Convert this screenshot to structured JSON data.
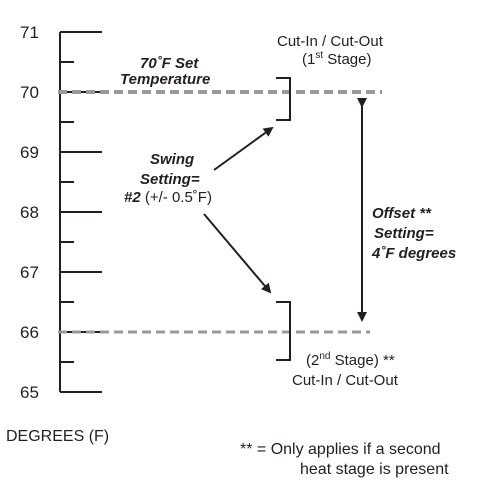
{
  "axis": {
    "ticks": [
      "71",
      "70",
      "69",
      "68",
      "67",
      "66",
      "65"
    ],
    "label": "DEGREES (F)"
  },
  "set_temperature": {
    "line1": "70˚F Set",
    "line2": "Temperature"
  },
  "stage1": {
    "line1": "Cut-In / Cut-Out",
    "line2_pre": "(1",
    "line2_sup": "st",
    "line2_post": " Stage)"
  },
  "swing": {
    "line1": "Swing",
    "line2": "Setting=",
    "line3_bold": "#2",
    "line3_rest": " (+/- 0.5˚F)"
  },
  "offset": {
    "line1": "Offset **",
    "line2": "Setting=",
    "line3": "4˚F degrees"
  },
  "stage2": {
    "line1_pre": "(2",
    "line1_sup": "nd",
    "line1_post": " Stage) **",
    "line2": "Cut-In / Cut-Out"
  },
  "footnote": {
    "line1": "** = Only applies if a second",
    "line2": "heat stage is present"
  },
  "colors": {
    "ink": "#231f20",
    "dashed_line": "#999999"
  }
}
